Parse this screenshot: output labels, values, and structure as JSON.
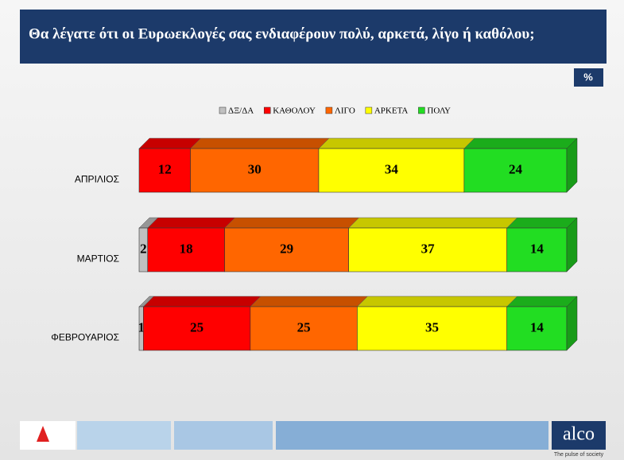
{
  "chart_data": {
    "type": "bar3d-stacked-horizontal",
    "title": "Θα λέγατε ότι οι Ευρωεκλογές σας ενδιαφέρουν πολύ, αρκετά, λίγο ή καθόλου;",
    "unit_label": "%",
    "categories": [
      "ΑΠΡΙΛΙΟΣ",
      "ΜΑΡΤΙΟΣ",
      "ΦΕΒΡΟΥΑΡΙΟΣ"
    ],
    "series": [
      {
        "name": "ΔΞ/ΔΑ",
        "color": "#c0c0c0",
        "values": [
          null,
          2,
          1
        ]
      },
      {
        "name": "ΚΑΘΟΛΟΥ",
        "color": "#ff0000",
        "values": [
          12,
          18,
          25
        ]
      },
      {
        "name": "ΛΙΓΟ",
        "color": "#ff6600",
        "values": [
          30,
          29,
          25
        ]
      },
      {
        "name": "ΑΡΚΕΤΑ",
        "color": "#ffff00",
        "values": [
          34,
          37,
          35
        ]
      },
      {
        "name": "ΠΟΛΥ",
        "color": "#22dd22",
        "values": [
          24,
          14,
          14
        ]
      }
    ],
    "legend": "top",
    "brand": "alco",
    "brand_tagline": "The pulse of society"
  }
}
